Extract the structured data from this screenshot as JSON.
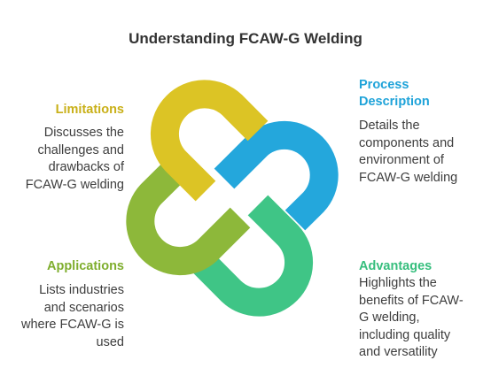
{
  "title": "Understanding FCAW-G Welding",
  "colors": {
    "yellow": "#dcc425",
    "blue": "#24a7dc",
    "lime": "#8db83a",
    "green": "#3fc586",
    "limitations_heading": "#c9b018",
    "process_heading": "#1fa3d9",
    "applications_heading": "#7fae2e",
    "advantages_heading": "#36be7d"
  },
  "icons": [
    "interlocking-loops-icon"
  ],
  "sections": {
    "limitations": {
      "heading": "Limitations",
      "lines": [
        "Discusses the",
        "challenges and",
        "drawbacks of",
        "FCAW-G welding"
      ]
    },
    "process": {
      "heading_lines": [
        "Process",
        "Description"
      ],
      "lines": [
        "Details the",
        "components and",
        "environment of",
        "FCAW-G welding"
      ]
    },
    "applications": {
      "heading": "Applications",
      "lines": [
        "Lists industries",
        "and scenarios",
        "where FCAW-G is",
        "used"
      ]
    },
    "advantages": {
      "heading": "Advantages",
      "lines": [
        "Highlights the",
        "benefits of FCAW-",
        "G welding,",
        "including quality",
        "and versatility"
      ]
    }
  }
}
